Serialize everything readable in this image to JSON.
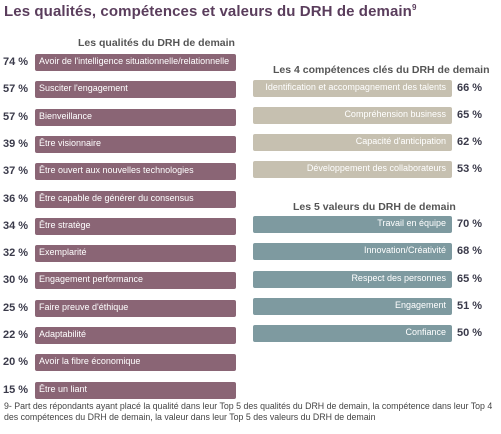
{
  "title": "Les qualités, compétences et valeurs du DRH de demain",
  "title_note": "9",
  "footnote": "9- Part des répondants ayant placé la qualité dans leur Top 5 des qualités du DRH de demain, la compétence dans leur Top 4 des compétences du DRH de demain, la valeur dans leur Top 5 des valeurs du DRH de demain",
  "colors": {
    "qualites": "#8a6575",
    "competences": "#c6c0b0",
    "valeurs": "#7e9aa0"
  },
  "chart_data": [
    {
      "type": "bar",
      "title": "Les qualités du DRH de demain",
      "categories": [
        "Avoir de l'intelligence situationnelle/relationnelle",
        "Susciter l'engagement",
        "Bienveillance",
        "Être visionnaire",
        "Être ouvert aux nouvelles technologies",
        "Être capable de générer du consensus",
        "Être stratège",
        "Exemplarité",
        "Engagement performance",
        "Faire preuve d'éthique",
        "Adaptabilité",
        "Avoir la fibre économique",
        "Être un liant"
      ],
      "values": [
        74,
        57,
        57,
        39,
        37,
        36,
        34,
        32,
        30,
        25,
        22,
        20,
        15
      ],
      "labels": [
        "74 %",
        "57 %",
        "57 %",
        "39 %",
        "37 %",
        "36 %",
        "34 %",
        "32 %",
        "30 %",
        "25 %",
        "22 %",
        "20 %",
        "15 %"
      ]
    },
    {
      "type": "bar",
      "title": "Les 4 compétences clés du DRH de demain",
      "categories": [
        "Identification et accompagnement des talents",
        "Compréhension business",
        "Capacité d'anticipation",
        "Développement des collaborateurs"
      ],
      "values": [
        66,
        65,
        62,
        53
      ],
      "labels": [
        "66 %",
        "65 %",
        "62 %",
        "53 %"
      ]
    },
    {
      "type": "bar",
      "title": "Les 5 valeurs du DRH de demain",
      "categories": [
        "Travail en équipe",
        "Innovation/Créativité",
        "Respect des personnes",
        "Engagement",
        "Confiance"
      ],
      "values": [
        70,
        68,
        65,
        51,
        50
      ],
      "labels": [
        "70 %",
        "68 %",
        "65 %",
        "51 %",
        "50 %"
      ]
    }
  ]
}
